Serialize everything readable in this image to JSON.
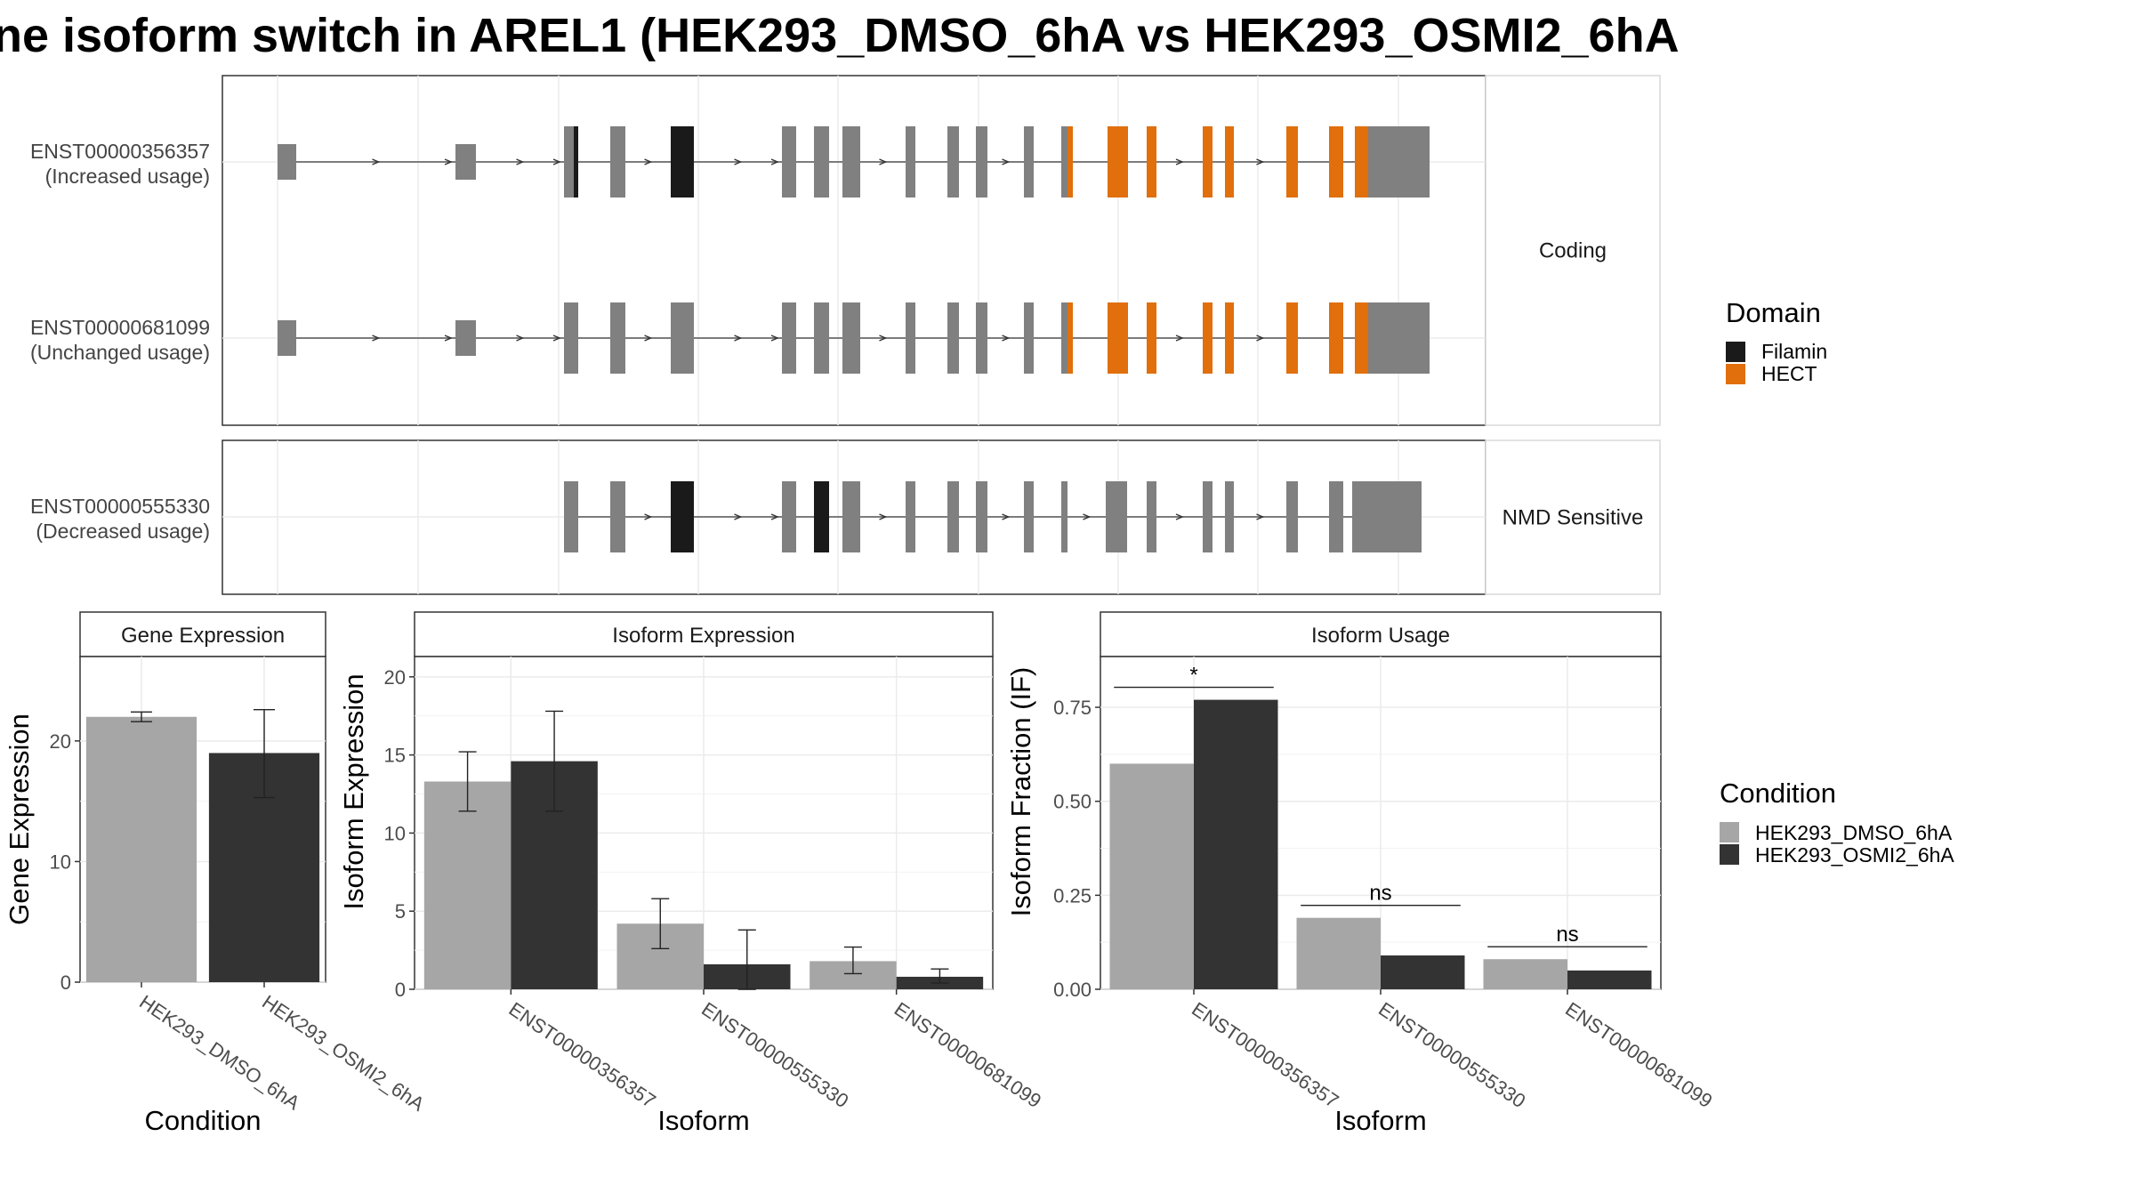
{
  "title": "ne isoform switch in AREL1 (HEK293_DMSO_6hA vs HEK293_OSMI2_6hA",
  "colors": {
    "exon": "#808080",
    "filamin": "#1a1a1a",
    "hect": "#e06f0c",
    "dmso": "#a6a6a6",
    "osmi2": "#333333"
  },
  "chart_data": [
    {
      "type": "gene-structure",
      "panels": [
        {
          "label": "Coding",
          "transcripts": [
            {
              "id": "ENST00000356357",
              "note": "(Increased usage)"
            },
            {
              "id": "ENST00000681099",
              "note": "(Unchanged usage)"
            }
          ]
        },
        {
          "label": "NMD Sensitive",
          "transcripts": [
            {
              "id": "ENST00000555330",
              "note": "(Decreased usage)"
            }
          ]
        }
      ],
      "legend": {
        "title": "Domain",
        "items": [
          {
            "label": "Filamin",
            "color": "#1a1a1a"
          },
          {
            "label": "HECT",
            "color": "#e06f0c"
          }
        ]
      }
    },
    {
      "type": "bar",
      "strip": "Gene Expression",
      "xlabel": "Condition",
      "ylabel": "Gene Expression",
      "ylim": [
        0,
        27
      ],
      "yticks": [
        0,
        10,
        20
      ],
      "categories": [
        "HEK293_DMSO_6hA",
        "HEK293_OSMI2_6hA"
      ],
      "values": [
        22.0,
        19.0
      ],
      "error_low": [
        21.6,
        15.3
      ],
      "error_high": [
        22.4,
        22.6
      ]
    },
    {
      "type": "bar",
      "strip": "Isoform Expression",
      "xlabel": "Isoform",
      "ylabel": "Isoform Expression",
      "ylim": [
        0,
        21.3
      ],
      "yticks": [
        0,
        5,
        10,
        15,
        20
      ],
      "categories": [
        "ENST00000356357",
        "ENST00000555330",
        "ENST00000681099"
      ],
      "series": [
        {
          "name": "HEK293_DMSO_6hA",
          "values": [
            13.3,
            4.2,
            1.8
          ],
          "error_low": [
            11.4,
            2.6,
            1.0
          ],
          "error_high": [
            15.2,
            5.8,
            2.7
          ]
        },
        {
          "name": "HEK293_OSMI2_6hA",
          "values": [
            14.6,
            1.6,
            0.8
          ],
          "error_low": [
            11.4,
            0.0,
            0.4
          ],
          "error_high": [
            17.8,
            3.8,
            1.3
          ]
        }
      ]
    },
    {
      "type": "bar",
      "strip": "Isoform Usage",
      "xlabel": "Isoform",
      "ylabel": "Isoform Fraction (IF)",
      "ylim": [
        0,
        0.885
      ],
      "yticks": [
        0.0,
        0.25,
        0.5,
        0.75
      ],
      "ytick_labels": [
        "0.00",
        "0.25",
        "0.50",
        "0.75"
      ],
      "categories": [
        "ENST00000356357",
        "ENST00000555330",
        "ENST00000681099"
      ],
      "series": [
        {
          "name": "HEK293_DMSO_6hA",
          "values": [
            0.6,
            0.19,
            0.08
          ]
        },
        {
          "name": "HEK293_OSMI2_6hA",
          "values": [
            0.77,
            0.09,
            0.05
          ]
        }
      ],
      "significance": [
        "*",
        "ns",
        "ns"
      ]
    }
  ],
  "condition_legend": {
    "title": "Condition",
    "items": [
      {
        "label": "HEK293_DMSO_6hA",
        "color": "#a6a6a6"
      },
      {
        "label": "HEK293_OSMI2_6hA",
        "color": "#333333"
      }
    ]
  }
}
